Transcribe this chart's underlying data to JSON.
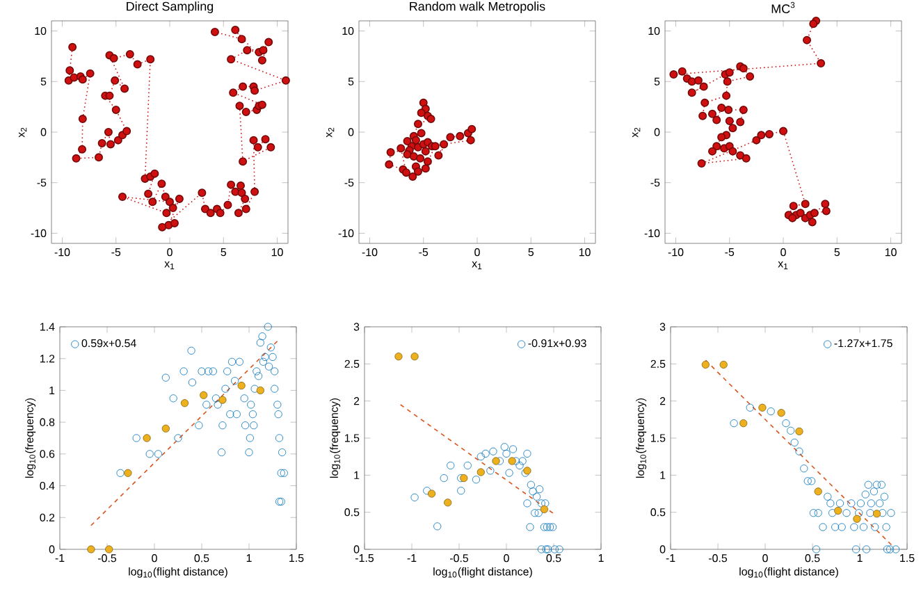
{
  "chart_data": [
    {
      "type": "line",
      "title": "Direct Sampling",
      "xlabel": "x$_{1}$",
      "ylabel": "x$_{2}$",
      "xlim": [
        -11,
        11
      ],
      "ylim": [
        -11,
        11
      ],
      "xticks": [
        -10,
        -5,
        0,
        5,
        10
      ],
      "yticks": [
        -10,
        -5,
        0,
        5,
        10
      ],
      "marker": "circle",
      "line_style": "dotted",
      "series": [
        {
          "color": "#d01010",
          "x": [
            -9.05,
            -9.3,
            -9.4,
            -8.9,
            -8.3,
            -8.1,
            -7.4,
            -8.1,
            -8.15,
            -8.7,
            -6.6,
            -6.3,
            -5.7,
            -5.5,
            -4.8,
            -4.4,
            -4.0,
            -5.0,
            -6.0,
            -5.6,
            -5.1,
            -4.2,
            -5.6,
            -5.2,
            -3.7,
            -3.0,
            -1.8,
            -2.3,
            -1.8,
            -1.4,
            -2.0,
            -1.6,
            -0.75,
            -0.4,
            0,
            -4.4,
            -0.3,
            0.3,
            0.9,
            -0.1,
            0.45,
            -0.7,
            3.0,
            3.3,
            3.8,
            4.4,
            4.7,
            5.4,
            5.7,
            6.1,
            6.6,
            6.7,
            7.0,
            6.4,
            7.1,
            7.9,
            7.8,
            8.2,
            8.9,
            9.4,
            6.8,
            6.5,
            7.1,
            8.1,
            8.3,
            8.6,
            5.9,
            6.8,
            7.8,
            7.9,
            10.8,
            5.7,
            7.2,
            8.3,
            8.7,
            9.2,
            8.6,
            6.1,
            6.7,
            4.2
          ],
          "values": [
            8.4,
            6.1,
            5.1,
            5.4,
            5.5,
            5.2,
            5.8,
            1.3,
            -1.7,
            -2.6,
            -2.5,
            -1.1,
            0,
            -1.2,
            -0.8,
            -0.3,
            0.1,
            2.2,
            3.6,
            3.6,
            5.1,
            4.3,
            7.6,
            7.3,
            7.7,
            6.7,
            7.2,
            -4.6,
            -4.4,
            -4.1,
            -6.1,
            -6.9,
            -5.1,
            -6.4,
            -6.9,
            -6.4,
            -8.0,
            -7.5,
            -6.6,
            -9.2,
            -9.0,
            -9.4,
            -6.0,
            -7.6,
            -8.0,
            -7.6,
            -8.0,
            -7.2,
            -5.2,
            -5.9,
            -5.3,
            -6.0,
            -6.6,
            -8.0,
            -7.6,
            -5.9,
            -0.8,
            -1.5,
            -0.7,
            -1.5,
            -2.9,
            2.6,
            2.0,
            2.2,
            2.6,
            2.7,
            3.9,
            4.5,
            4.5,
            4.1,
            5.1,
            7.2,
            8.1,
            7.9,
            8.1,
            8.9,
            7.1,
            10.1,
            9.2,
            9.9
          ]
        }
      ]
    },
    {
      "type": "line",
      "title": "Random walk Metropolis",
      "xlabel": "x$_{1}$",
      "ylabel": "x$_{2}$",
      "xlim": [
        -11,
        11
      ],
      "ylim": [
        -11,
        11
      ],
      "xticks": [
        -10,
        -5,
        0,
        5,
        10
      ],
      "yticks": [
        -10,
        -5,
        0,
        5,
        10
      ],
      "marker": "circle",
      "line_style": "dotted",
      "series": [
        {
          "color": "#d01010",
          "x": [
            -5.0,
            -4.8,
            -5.2,
            -4.6,
            -4.3,
            -5.5,
            -5.9,
            -5.7,
            -6.1,
            -6.3,
            -6.5,
            -5.9,
            -5.5,
            -5.0,
            -4.6,
            -4.2,
            -4.8,
            -5.3,
            -5.7,
            -6.0,
            -5.5,
            -4.8,
            -4.6,
            -3.9,
            -3.1,
            -3.6,
            -2.5,
            -1.6,
            -0.85,
            -0.5,
            -0.6,
            -8.05,
            -8.2,
            -6.9,
            -6.6,
            -7.1,
            -6.5,
            -5.2
          ],
          "values": [
            2.9,
            2.3,
            1.9,
            1.6,
            1.3,
            0.8,
            -0.4,
            -0.8,
            -1.4,
            -1.8,
            -2.2,
            -2.4,
            -1.5,
            -1.2,
            -1.0,
            -1.4,
            -1.9,
            -2.6,
            -3.4,
            -4.4,
            -3.9,
            -3.6,
            -2.9,
            -1.4,
            -1.2,
            -2.3,
            -0.5,
            -0.4,
            -0.1,
            0.3,
            -0.8,
            -2.0,
            -3.2,
            -3.7,
            -4.0,
            -1.6,
            -0.9,
            -0.1
          ]
        }
      ]
    },
    {
      "type": "line",
      "title": "MC$^{3}$",
      "xlabel": "x$_{1}$",
      "ylabel": "x$_{2}$",
      "xlim": [
        -11,
        11
      ],
      "ylim": [
        -11,
        11
      ],
      "xticks": [
        -10,
        -5,
        0,
        5,
        10
      ],
      "yticks": [
        -10,
        -5,
        0,
        5,
        10
      ],
      "marker": "circle",
      "line_style": "dotted",
      "series": [
        {
          "color": "#d01010",
          "x": [
            3.05,
            2.8,
            2.2,
            3.5,
            -10.2,
            -9.4,
            -8.95,
            -8.5,
            -7.9,
            -7.4,
            -8.5,
            -5.4,
            -5.0,
            -4.0,
            -3.7,
            -3.1,
            -5.2,
            -5.3,
            -7.3,
            -7.5,
            -6.6,
            -6.2,
            -5.75,
            -5.1,
            -3.7,
            -4.0,
            -5.0,
            -4.7,
            -5.3,
            -5.75,
            -6.2,
            -6.6,
            -5.5,
            -5.0,
            -4.7,
            -4.0,
            -3.45,
            -7.6,
            -2.5,
            -2.05,
            -1.3,
            0.0,
            2.05,
            0.95,
            0.5,
            1.2,
            1.6,
            2.05,
            2.7,
            2.5,
            2.9,
            3.9,
            4.0,
            0.85
          ],
          "values": [
            11.0,
            10.7,
            9.1,
            6.8,
            5.7,
            6.0,
            5.3,
            5.0,
            5.1,
            4.5,
            3.9,
            5.7,
            5.9,
            6.5,
            6.3,
            5.5,
            5.0,
            3.6,
            2.9,
            1.6,
            1.8,
            1.2,
            2.4,
            2.2,
            2.2,
            1.0,
            1.1,
            0.4,
            -0.3,
            -0.5,
            -1.4,
            -1.9,
            -1.6,
            -1.4,
            -1.9,
            -2.3,
            -2.6,
            -3.1,
            -0.8,
            -0.3,
            -0.2,
            0.1,
            -7.1,
            -7.3,
            -8.2,
            -8.2,
            -8.0,
            -8.5,
            -8.9,
            -8.2,
            -8.0,
            -7.1,
            -7.8,
            -8.5
          ]
        }
      ]
    },
    {
      "type": "scatter",
      "xlabel": "log$_{10}$(flight distance)",
      "ylabel": "log$_{10}$(frequency)",
      "xlim": [
        -1,
        1.5
      ],
      "ylim": [
        0,
        1.4
      ],
      "xticks": [
        -1,
        -0.5,
        0,
        0.5,
        1,
        1.5
      ],
      "yticks": [
        0,
        0.2,
        0.4,
        0.6,
        0.8,
        1,
        1.2,
        1.4
      ],
      "legend": "top left",
      "series": [
        {
          "name": "0.59x+0.54",
          "color": "#0072bd",
          "marker": "circle",
          "x": [
            -0.36,
            -0.19,
            -0.05,
            0.04,
            0.12,
            0.2,
            0.25,
            0.31,
            0.39,
            0.4,
            0.47,
            0.5,
            0.57,
            0.62,
            0.55,
            0.65,
            0.67,
            0.71,
            0.72,
            0.75,
            0.77,
            0.8,
            0.82,
            0.85,
            0.87,
            0.9,
            0.95,
            0.96,
            1.0,
            1.01,
            1.02,
            1.04,
            1.05,
            1.06,
            1.08,
            1.1,
            1.12,
            1.14,
            1.17,
            1.2,
            1.21,
            1.23,
            1.25,
            1.27,
            1.3,
            1.31,
            1.32,
            1.35,
            1.34,
            1.37,
            1.32,
            1.34,
            1.27,
            1.15
          ],
          "values": [
            0.48,
            0.7,
            0.6,
            0.6,
            1.08,
            0.95,
            0.7,
            1.12,
            1.25,
            1.05,
            0.78,
            1.12,
            1.12,
            1.12,
            0.91,
            0.95,
            0.91,
            0.61,
            0.78,
            1.01,
            1.12,
            0.85,
            1.18,
            1.06,
            0.85,
            1.18,
            0.95,
            0.78,
            0.61,
            0.7,
            0.91,
            0.85,
            0.78,
            1.01,
            1.12,
            1.09,
            1.3,
            1.34,
            1.21,
            1.4,
            1.15,
            1.27,
            1.21,
            1.01,
            0.91,
            0.85,
            0.7,
            0.61,
            0.48,
            0.48,
            0.3,
            0.3,
            1.12,
            1.18
          ]
        },
        {
          "color": "#edb120",
          "marker": "circle",
          "x": [
            -0.67,
            -0.48,
            -0.28,
            -0.08,
            0.12,
            0.32,
            0.52,
            0.72,
            0.92,
            1.12
          ],
          "values": [
            0,
            0,
            0.48,
            0.7,
            0.76,
            0.92,
            0.97,
            0.94,
            1.03,
            1.0
          ]
        },
        {
          "type": "line",
          "color": "#d95319",
          "marker": "none",
          "line_style": "dashed",
          "x": [
            -0.67,
            1.3
          ],
          "values": [
            0.15,
            1.31
          ]
        }
      ]
    },
    {
      "type": "scatter",
      "xlabel": "log$_{10}$(flight distance)",
      "ylabel": "log$_{10}$(frequency)",
      "xlim": [
        -1.5,
        1
      ],
      "ylim": [
        0,
        3
      ],
      "xticks": [
        -1.5,
        -1,
        -0.5,
        0,
        0.5,
        1
      ],
      "yticks": [
        0,
        0.5,
        1,
        1.5,
        2,
        2.5,
        3
      ],
      "legend": "top right",
      "series": [
        {
          "name": "-0.91x+0.93",
          "color": "#0072bd",
          "marker": "circle",
          "x": [
            -0.97,
            -0.84,
            -0.73,
            -0.66,
            -0.59,
            -0.48,
            -0.48,
            -0.41,
            -0.32,
            -0.27,
            -0.22,
            -0.17,
            -0.14,
            -0.07,
            -0.02,
            0.0,
            0.03,
            0.07,
            0.1,
            0.14,
            0.17,
            0.2,
            0.22,
            0.22,
            0.25,
            0.26,
            0.28,
            0.3,
            0.32,
            0.34,
            0.35,
            0.37,
            0.4,
            0.41,
            0.43,
            0.44,
            0.46,
            0.49,
            0.51,
            0.56,
            0.37,
            0.42
          ],
          "values": [
            0.7,
            0.79,
            0.31,
            0.96,
            1.13,
            0.79,
            0.96,
            1.13,
            0.94,
            1.25,
            1.29,
            1.06,
            1.32,
            1.19,
            1.38,
            1.29,
            1.03,
            1.35,
            1.19,
            1.13,
            1.19,
            1.03,
            1.29,
            0.62,
            0.3,
            0.87,
            0.78,
            0.49,
            0.71,
            0.49,
            0.81,
            0.62,
            0.3,
            0.62,
            0.3,
            0,
            0.3,
            0.3,
            0,
            0,
            0,
            0
          ]
        },
        {
          "color": "#edb120",
          "marker": "circle",
          "x": [
            -1.14,
            -0.97,
            -0.79,
            -0.62,
            -0.45,
            -0.27,
            -0.11,
            0.06,
            0.22,
            0.4
          ],
          "values": [
            2.6,
            2.6,
            0.75,
            0.63,
            0.96,
            1.04,
            1.19,
            1.19,
            1.06,
            0.54
          ]
        },
        {
          "type": "line",
          "color": "#d95319",
          "marker": "none",
          "line_style": "dashed",
          "x": [
            -1.12,
            0.5
          ],
          "values": [
            1.95,
            0.48
          ]
        }
      ]
    },
    {
      "type": "scatter",
      "xlabel": "log$_{10}$(flight distance)",
      "ylabel": "log$_{10}$(frequency)",
      "xlim": [
        -1,
        1.5
      ],
      "ylim": [
        0,
        3
      ],
      "xticks": [
        -1,
        -0.5,
        0,
        0.5,
        1,
        1.5
      ],
      "yticks": [
        0,
        0.5,
        1,
        1.5,
        2,
        2.5,
        3
      ],
      "legend": "top right",
      "series": [
        {
          "name": "-1.27x+1.75",
          "color": "#0072bd",
          "marker": "circle",
          "x": [
            -0.33,
            -0.16,
            0.06,
            0.22,
            0.27,
            0.31,
            0.36,
            0.41,
            0.45,
            0.49,
            0.51,
            0.54,
            0.56,
            0.61,
            0.66,
            0.69,
            0.71,
            0.74,
            0.79,
            0.81,
            0.86,
            0.91,
            0.94,
            0.96,
            0.99,
            1.01,
            1.04,
            1.06,
            1.07,
            1.09,
            1.11,
            1.12,
            1.15,
            1.16,
            1.18,
            1.21,
            1.23,
            1.24,
            1.26,
            1.28,
            1.29,
            1.32,
            1.33,
            1.38
          ],
          "values": [
            1.7,
            1.91,
            1.86,
            1.7,
            1.6,
            1.44,
            1.32,
            1.09,
            0.92,
            0.92,
            0.49,
            0,
            0.49,
            0.3,
            0.71,
            0.62,
            0.49,
            0.3,
            0.62,
            0.3,
            0.49,
            0.62,
            0.3,
            0,
            0.49,
            0.62,
            0.3,
            0.74,
            0,
            0.87,
            0.49,
            0.62,
            0.78,
            0.3,
            0.87,
            0.62,
            0.87,
            0.49,
            0.71,
            0.3,
            0,
            0,
            0.49,
            0
          ]
        },
        {
          "color": "#edb120",
          "marker": "circle",
          "x": [
            -0.63,
            -0.44,
            -0.23,
            -0.03,
            0.17,
            0.36,
            0.56,
            0.77,
            0.97,
            1.18
          ],
          "values": [
            2.49,
            2.49,
            1.7,
            1.91,
            1.84,
            1.59,
            0.78,
            0.52,
            0.41,
            0.48
          ]
        },
        {
          "type": "line",
          "color": "#d95319",
          "marker": "none",
          "line_style": "dashed",
          "x": [
            -0.63,
            1.35
          ],
          "values": [
            2.55,
            0.04
          ]
        }
      ]
    }
  ]
}
